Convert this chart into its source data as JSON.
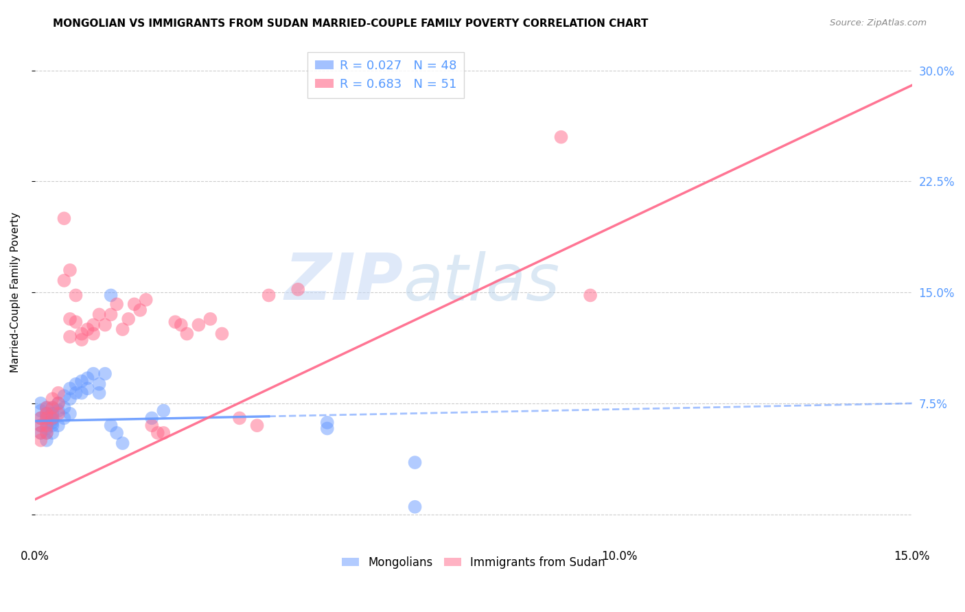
{
  "title": "MONGOLIAN VS IMMIGRANTS FROM SUDAN MARRIED-COUPLE FAMILY POVERTY CORRELATION CHART",
  "source": "Source: ZipAtlas.com",
  "ylabel": "Married-Couple Family Poverty",
  "xlim": [
    0.0,
    0.15
  ],
  "ylim": [
    -0.02,
    0.32
  ],
  "yticks": [
    0.0,
    0.075,
    0.15,
    0.225,
    0.3
  ],
  "ytick_labels": [
    "",
    "7.5%",
    "15.0%",
    "22.5%",
    "30.0%"
  ],
  "xticks": [
    0.0,
    0.05,
    0.1,
    0.15
  ],
  "xtick_labels": [
    "0.0%",
    "",
    "10.0%",
    "15.0%"
  ],
  "mongolian_color": "#6699ff",
  "sudan_color": "#ff6688",
  "mongolian_R": 0.027,
  "mongolian_N": 48,
  "sudan_R": 0.683,
  "sudan_N": 51,
  "watermark_zip": "ZIP",
  "watermark_atlas": "atlas",
  "legend_mongolians": "Mongolians",
  "legend_sudan": "Immigrants from Sudan",
  "mongolian_x": [
    0.001,
    0.001,
    0.001,
    0.001,
    0.001,
    0.002,
    0.002,
    0.002,
    0.002,
    0.002,
    0.002,
    0.002,
    0.003,
    0.003,
    0.003,
    0.003,
    0.003,
    0.003,
    0.003,
    0.004,
    0.004,
    0.004,
    0.005,
    0.005,
    0.005,
    0.006,
    0.006,
    0.006,
    0.007,
    0.007,
    0.008,
    0.008,
    0.009,
    0.009,
    0.01,
    0.011,
    0.011,
    0.012,
    0.013,
    0.013,
    0.014,
    0.015,
    0.02,
    0.022,
    0.05,
    0.05,
    0.065,
    0.065
  ],
  "mongolian_y": [
    0.065,
    0.06,
    0.055,
    0.07,
    0.075,
    0.062,
    0.058,
    0.068,
    0.072,
    0.065,
    0.055,
    0.05,
    0.068,
    0.064,
    0.06,
    0.072,
    0.068,
    0.062,
    0.055,
    0.075,
    0.07,
    0.06,
    0.08,
    0.072,
    0.065,
    0.085,
    0.078,
    0.068,
    0.088,
    0.082,
    0.09,
    0.082,
    0.092,
    0.085,
    0.095,
    0.088,
    0.082,
    0.095,
    0.148,
    0.06,
    0.055,
    0.048,
    0.065,
    0.07,
    0.062,
    0.058,
    0.005,
    0.035
  ],
  "sudan_x": [
    0.001,
    0.001,
    0.001,
    0.001,
    0.002,
    0.002,
    0.002,
    0.002,
    0.002,
    0.003,
    0.003,
    0.003,
    0.004,
    0.004,
    0.004,
    0.005,
    0.005,
    0.006,
    0.006,
    0.006,
    0.007,
    0.007,
    0.008,
    0.008,
    0.009,
    0.01,
    0.01,
    0.011,
    0.012,
    0.013,
    0.014,
    0.015,
    0.016,
    0.017,
    0.018,
    0.019,
    0.02,
    0.021,
    0.022,
    0.024,
    0.025,
    0.026,
    0.028,
    0.03,
    0.032,
    0.035,
    0.038,
    0.04,
    0.045,
    0.09,
    0.095
  ],
  "sudan_y": [
    0.065,
    0.06,
    0.055,
    0.05,
    0.072,
    0.068,
    0.065,
    0.06,
    0.055,
    0.078,
    0.072,
    0.065,
    0.082,
    0.075,
    0.068,
    0.2,
    0.158,
    0.165,
    0.132,
    0.12,
    0.148,
    0.13,
    0.122,
    0.118,
    0.125,
    0.128,
    0.122,
    0.135,
    0.128,
    0.135,
    0.142,
    0.125,
    0.132,
    0.142,
    0.138,
    0.145,
    0.06,
    0.055,
    0.055,
    0.13,
    0.128,
    0.122,
    0.128,
    0.132,
    0.122,
    0.065,
    0.06,
    0.148,
    0.152,
    0.255,
    0.148
  ],
  "background_color": "#ffffff",
  "grid_color": "#cccccc",
  "title_fontsize": 11,
  "tick_label_color_right": "#5599ff"
}
